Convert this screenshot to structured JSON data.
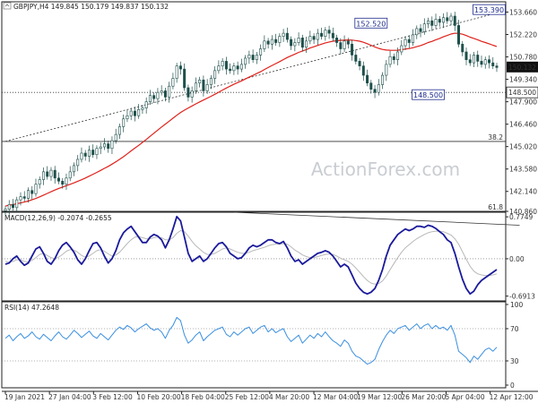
{
  "chart_data": [
    {
      "type": "candlestick",
      "title": "GBPJPY,H4",
      "header_values": [
        "149.845",
        "150.179",
        "149.837",
        "150.132"
      ],
      "watermark": "ActionForex.com",
      "ylim": [
        140.86,
        154.32
      ],
      "y_ticks": [
        "153.660",
        "152.220",
        "150.780",
        "149.340",
        "147.900",
        "146.460",
        "145.020",
        "143.580",
        "142.140",
        "140.860"
      ],
      "price_tags": [
        {
          "text": "150.132",
          "value": 150.132,
          "style": "filled"
        },
        {
          "text": "148.500",
          "value": 148.5,
          "style": "outline"
        }
      ],
      "level_lines": [
        {
          "value": 148.5,
          "style": "dotted"
        },
        {
          "value": 145.35,
          "label": "38.2",
          "style": "solid"
        },
        {
          "value": 140.86,
          "label": "61.8",
          "style": "solid"
        }
      ],
      "annotations": [
        {
          "text": "152.520",
          "x": 96,
          "y": 152.52
        },
        {
          "text": "153.390",
          "x": 127,
          "y": 153.39
        },
        {
          "text": "148.500",
          "x": 111,
          "y": 148.5
        }
      ],
      "trendline": {
        "x": [
          0,
          129
        ],
        "y": [
          145.35,
          153.6
        ]
      },
      "close_series": [
        141.0,
        141.3,
        141.1,
        141.6,
        141.8,
        141.7,
        142.2,
        142.0,
        142.6,
        142.9,
        143.4,
        143.1,
        143.5,
        143.0,
        142.8,
        142.6,
        143.0,
        143.4,
        143.8,
        144.2,
        144.6,
        144.4,
        144.8,
        144.5,
        144.9,
        145.0,
        145.2,
        144.9,
        145.4,
        145.8,
        146.3,
        146.8,
        147.0,
        147.3,
        147.0,
        147.4,
        147.5,
        147.9,
        148.3,
        148.1,
        148.5,
        148.6,
        148.2,
        148.9,
        149.4,
        150.2,
        150.0,
        148.8,
        148.2,
        148.6,
        149.1,
        149.3,
        148.6,
        149.0,
        149.4,
        149.9,
        150.2,
        150.5,
        150.0,
        149.9,
        150.2,
        150.0,
        150.3,
        150.7,
        150.9,
        150.6,
        150.9,
        151.3,
        151.8,
        151.6,
        151.9,
        151.7,
        152.1,
        152.3,
        151.9,
        151.5,
        151.7,
        152.0,
        151.4,
        151.8,
        152.1,
        151.9,
        152.3,
        152.1,
        152.5,
        152.3,
        152.0,
        151.7,
        151.3,
        151.8,
        151.6,
        150.9,
        150.5,
        150.2,
        149.6,
        149.1,
        148.7,
        148.5,
        149.0,
        149.6,
        150.3,
        150.8,
        150.6,
        151.1,
        151.5,
        151.9,
        151.7,
        152.2,
        152.6,
        152.4,
        152.9,
        153.1,
        152.8,
        153.2,
        153.0,
        153.3,
        153.1,
        153.4,
        152.8,
        151.6,
        151.1,
        150.6,
        150.4,
        150.9,
        150.5,
        150.3,
        150.6,
        150.4,
        150.2,
        150.1
      ],
      "ma_series": [
        141.2,
        141.25,
        141.3,
        141.35,
        141.4,
        141.46,
        141.52,
        141.6,
        141.69,
        141.79,
        141.9,
        142.01,
        142.12,
        142.23,
        142.33,
        142.42,
        142.51,
        142.6,
        142.69,
        142.79,
        142.89,
        143.0,
        143.12,
        143.24,
        143.36,
        143.49,
        143.62,
        143.75,
        143.89,
        144.04,
        144.2,
        144.37,
        144.55,
        144.74,
        144.92,
        145.1,
        145.29,
        145.48,
        145.68,
        145.88,
        146.08,
        146.28,
        146.46,
        146.65,
        146.84,
        147.03,
        147.21,
        147.36,
        147.5,
        147.63,
        147.76,
        147.89,
        148.01,
        148.13,
        148.25,
        148.38,
        148.51,
        148.65,
        148.78,
        148.9,
        149.02,
        149.13,
        149.24,
        149.36,
        149.48,
        149.59,
        149.71,
        149.83,
        149.97,
        150.1,
        150.23,
        150.35,
        150.48,
        150.61,
        150.74,
        150.85,
        150.96,
        151.07,
        151.16,
        151.25,
        151.35,
        151.43,
        151.52,
        151.6,
        151.68,
        151.74,
        151.79,
        151.82,
        151.84,
        151.86,
        151.87,
        151.86,
        151.83,
        151.79,
        151.72,
        151.63,
        151.53,
        151.42,
        151.33,
        151.26,
        151.22,
        151.21,
        151.2,
        151.21,
        151.24,
        151.28,
        151.32,
        151.37,
        151.44,
        151.51,
        151.6,
        151.7,
        151.78,
        151.88,
        151.97,
        152.07,
        152.16,
        152.25,
        152.3,
        152.29,
        152.24,
        152.15,
        152.05,
        151.97,
        151.88,
        151.78,
        151.7,
        151.62,
        151.53,
        151.45
      ]
    },
    {
      "type": "line",
      "title": "MACD(12,26,9) -0.2074 -0.2655",
      "ylim": [
        -0.78,
        0.86
      ],
      "y_ticks": [
        "0.7749",
        "0.00",
        "-0.6913"
      ],
      "zero_line": 0.0,
      "trendline": {
        "x": [
          60,
          135
        ],
        "y": [
          0.86,
          0.62
        ]
      },
      "series": [
        {
          "color": "#1a1a9c",
          "values": [
            -0.1,
            -0.08,
            0.0,
            0.05,
            -0.05,
            -0.12,
            -0.08,
            0.05,
            0.18,
            0.22,
            0.1,
            -0.05,
            -0.1,
            0.0,
            0.15,
            0.25,
            0.3,
            0.22,
            0.12,
            -0.02,
            -0.1,
            0.0,
            0.15,
            0.28,
            0.3,
            0.2,
            0.05,
            -0.08,
            0.0,
            0.15,
            0.35,
            0.48,
            0.55,
            0.6,
            0.5,
            0.4,
            0.3,
            0.3,
            0.4,
            0.45,
            0.42,
            0.35,
            0.2,
            0.35,
            0.55,
            0.78,
            0.7,
            0.4,
            0.1,
            -0.05,
            0.0,
            0.05,
            -0.05,
            0.0,
            0.1,
            0.2,
            0.28,
            0.3,
            0.22,
            0.1,
            0.05,
            0.0,
            0.02,
            0.1,
            0.2,
            0.25,
            0.22,
            0.25,
            0.3,
            0.35,
            0.35,
            0.3,
            0.28,
            0.32,
            0.2,
            0.05,
            -0.05,
            -0.02,
            -0.1,
            -0.05,
            0.0,
            0.05,
            0.1,
            0.12,
            0.15,
            0.12,
            0.05,
            -0.05,
            -0.15,
            -0.1,
            -0.15,
            -0.3,
            -0.45,
            -0.55,
            -0.62,
            -0.65,
            -0.62,
            -0.55,
            -0.4,
            -0.2,
            0.05,
            0.25,
            0.35,
            0.45,
            0.5,
            0.55,
            0.52,
            0.55,
            0.6,
            0.6,
            0.58,
            0.62,
            0.6,
            0.56,
            0.5,
            0.45,
            0.35,
            0.3,
            0.1,
            -0.15,
            -0.38,
            -0.55,
            -0.65,
            -0.6,
            -0.48,
            -0.4,
            -0.35,
            -0.3,
            -0.25,
            -0.2
          ]
        },
        {
          "color": "#b8b8b8",
          "values": [
            -0.05,
            -0.06,
            -0.05,
            -0.02,
            -0.02,
            -0.05,
            -0.06,
            -0.03,
            0.02,
            0.08,
            0.1,
            0.06,
            0.02,
            0.0,
            0.03,
            0.08,
            0.14,
            0.17,
            0.16,
            0.12,
            0.06,
            0.03,
            0.05,
            0.1,
            0.15,
            0.17,
            0.14,
            0.09,
            0.05,
            0.07,
            0.12,
            0.2,
            0.28,
            0.35,
            0.4,
            0.41,
            0.39,
            0.37,
            0.37,
            0.39,
            0.4,
            0.39,
            0.35,
            0.35,
            0.39,
            0.47,
            0.52,
            0.5,
            0.42,
            0.32,
            0.24,
            0.18,
            0.12,
            0.08,
            0.08,
            0.1,
            0.14,
            0.18,
            0.2,
            0.18,
            0.15,
            0.12,
            0.1,
            0.1,
            0.12,
            0.15,
            0.17,
            0.19,
            0.21,
            0.24,
            0.26,
            0.27,
            0.27,
            0.28,
            0.27,
            0.22,
            0.16,
            0.12,
            0.07,
            0.04,
            0.02,
            0.02,
            0.04,
            0.06,
            0.08,
            0.09,
            0.08,
            0.05,
            0.01,
            -0.02,
            -0.05,
            -0.1,
            -0.17,
            -0.25,
            -0.33,
            -0.4,
            -0.45,
            -0.47,
            -0.46,
            -0.41,
            -0.32,
            -0.2,
            -0.09,
            0.02,
            0.12,
            0.2,
            0.26,
            0.32,
            0.37,
            0.41,
            0.45,
            0.48,
            0.5,
            0.51,
            0.51,
            0.5,
            0.47,
            0.44,
            0.37,
            0.27,
            0.13,
            -0.01,
            -0.14,
            -0.23,
            -0.28,
            -0.3,
            -0.31,
            -0.31,
            -0.3,
            -0.28
          ]
        }
      ]
    },
    {
      "type": "line",
      "title": "RSI(14) 47.2648",
      "ylim": [
        0,
        100
      ],
      "y_ticks": [
        "100",
        "70",
        "30",
        "0"
      ],
      "level_lines": [
        70,
        30
      ],
      "series": [
        {
          "color": "#3a8fe0",
          "values": [
            58,
            62,
            55,
            60,
            64,
            58,
            61,
            66,
            60,
            57,
            63,
            59,
            55,
            61,
            66,
            60,
            57,
            62,
            68,
            64,
            59,
            63,
            67,
            61,
            58,
            64,
            60,
            56,
            62,
            68,
            72,
            69,
            74,
            71,
            66,
            70,
            73,
            76,
            71,
            68,
            70,
            66,
            58,
            68,
            74,
            84,
            80,
            62,
            52,
            56,
            62,
            66,
            55,
            60,
            64,
            68,
            70,
            72,
            63,
            60,
            66,
            62,
            66,
            70,
            72,
            64,
            68,
            72,
            74,
            66,
            70,
            65,
            68,
            70,
            60,
            54,
            58,
            62,
            52,
            57,
            62,
            58,
            64,
            60,
            66,
            60,
            55,
            52,
            48,
            56,
            52,
            42,
            36,
            34,
            30,
            26,
            28,
            32,
            44,
            54,
            62,
            68,
            64,
            70,
            72,
            74,
            68,
            72,
            76,
            70,
            74,
            76,
            70,
            74,
            70,
            72,
            68,
            74,
            62,
            42,
            38,
            34,
            28,
            36,
            32,
            38,
            44,
            46,
            42,
            47
          ]
        }
      ]
    }
  ],
  "x_axis": {
    "labels": [
      "19 Jan 2021",
      "27 Jan 04:00",
      "3 Feb 12:00",
      "10 Feb 20:00",
      "18 Feb 04:00",
      "25 Feb 12:00",
      "4 Mar 20:00",
      "12 Mar 04:00",
      "19 Mar 12:00",
      "26 Mar 20:00",
      "5 Apr 04:00",
      "12 Apr 12:00"
    ]
  }
}
